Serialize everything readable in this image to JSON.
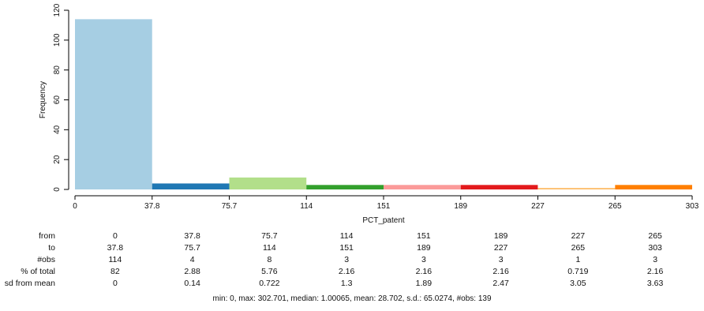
{
  "chart_data": {
    "type": "bar",
    "xlabel": "PCT_patent",
    "ylabel": "Frequency",
    "x_ticks": [
      "0",
      "37.8",
      "75.7",
      "114",
      "151",
      "189",
      "227",
      "265",
      "303"
    ],
    "y_ticks": [
      "0",
      "20",
      "40",
      "60",
      "80",
      "100",
      "120"
    ],
    "ylim": [
      0,
      120
    ],
    "bins": [
      {
        "from": 0,
        "to": 37.84,
        "count": 114
      },
      {
        "from": 37.84,
        "to": 75.68,
        "count": 4
      },
      {
        "from": 75.68,
        "to": 113.5,
        "count": 8
      },
      {
        "from": 113.5,
        "to": 151.4,
        "count": 3
      },
      {
        "from": 151.4,
        "to": 189.2,
        "count": 3
      },
      {
        "from": 189.2,
        "to": 227.0,
        "count": 3
      },
      {
        "from": 227.0,
        "to": 264.9,
        "count": 1
      },
      {
        "from": 264.9,
        "to": 302.7,
        "count": 3
      }
    ],
    "colors": [
      "#A6CEE3",
      "#1F78B4",
      "#B2DF8A",
      "#33A02C",
      "#FB9A99",
      "#E31A1C",
      "#FDBF6F",
      "#FF7F00"
    ]
  },
  "stats_table": {
    "labels": [
      "from",
      "to",
      "#obs",
      "% of total",
      "sd from mean"
    ],
    "rows": [
      [
        "0",
        "37.8",
        "75.7",
        "114",
        "151",
        "189",
        "227",
        "265"
      ],
      [
        "37.8",
        "75.7",
        "114",
        "151",
        "189",
        "227",
        "265",
        "303"
      ],
      [
        "114",
        "4",
        "8",
        "3",
        "3",
        "3",
        "1",
        "3"
      ],
      [
        "82",
        "2.88",
        "5.76",
        "2.16",
        "2.16",
        "2.16",
        "0.719",
        "2.16"
      ],
      [
        "0",
        "0.14",
        "0.722",
        "1.3",
        "1.89",
        "2.47",
        "3.05",
        "3.63"
      ]
    ]
  },
  "summary": "min: 0, max: 302.701, median: 1.00065, mean: 28.702, s.d.: 65.0274, #obs: 139"
}
